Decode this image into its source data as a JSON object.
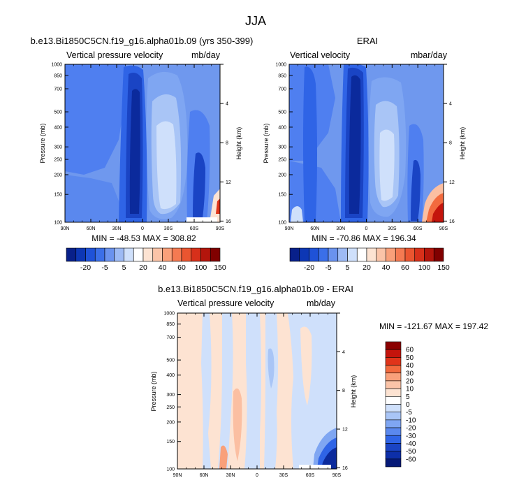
{
  "page_title": "JJA",
  "colors": {
    "dark_blue": "#0b2a9c",
    "blue": "#2f64e6",
    "light_blue": "#b8d0f8",
    "white": "#ffffff",
    "light_peach": "#fde3d2",
    "dark_red": "#8b0000"
  },
  "chart_data": [
    {
      "id": "model",
      "type": "heatmap",
      "title": "b.e13.Bi1850C5CN.f19_g16.alpha01b.09 (yrs 350-399)",
      "left_label": "Vertical pressure velocity",
      "right_label": "mb/day",
      "xlabel": "",
      "ylabel": "Pressure (mb)",
      "y2label": "Height (km)",
      "x_ticks": [
        "90N",
        "60N",
        "30N",
        "0",
        "30S",
        "60S",
        "90S"
      ],
      "y_ticks": [
        "100",
        "150",
        "200",
        "250",
        "300",
        "400",
        "500",
        "700",
        "850",
        "1000"
      ],
      "y2_ticks": [
        "16",
        "12",
        "8",
        "4"
      ],
      "ylim": [
        1000,
        100
      ],
      "stats": "MIN = -48.53  MAX = 308.82",
      "min": -48.53,
      "max": 308.82,
      "colorbar_labels": [
        "-20",
        "-5",
        "5",
        "20",
        "40",
        "60",
        "100",
        "150"
      ]
    },
    {
      "id": "obs",
      "type": "heatmap",
      "title": "ERAI",
      "left_label": "Vertical velocity",
      "right_label": "mbar/day",
      "xlabel": "",
      "ylabel": "Pressure (mb)",
      "y2label": "Height (km)",
      "x_ticks": [
        "90N",
        "60N",
        "30N",
        "0",
        "30S",
        "60S",
        "90S"
      ],
      "y_ticks": [
        "100",
        "150",
        "200",
        "250",
        "300",
        "400",
        "500",
        "700",
        "850",
        "1000"
      ],
      "y2_ticks": [
        "16",
        "12",
        "8",
        "4"
      ],
      "ylim": [
        1000,
        100
      ],
      "stats": "MIN = -70.86  MAX = 196.34",
      "min": -70.86,
      "max": 196.34,
      "colorbar_labels": [
        "-20",
        "-5",
        "5",
        "20",
        "40",
        "60",
        "100",
        "150"
      ]
    },
    {
      "id": "diff",
      "type": "heatmap",
      "title": "b.e13.Bi1850C5CN.f19_g16.alpha01b.09 - ERAI",
      "left_label": "Vertical pressure velocity",
      "right_label": "mb/day",
      "xlabel": "",
      "ylabel": "Pressure (mb)",
      "y2label": "Height (km)",
      "x_ticks": [
        "90N",
        "60N",
        "30N",
        "0",
        "30S",
        "60S",
        "90S"
      ],
      "y_ticks": [
        "100",
        "150",
        "200",
        "250",
        "300",
        "400",
        "500",
        "700",
        "850",
        "1000"
      ],
      "y2_ticks": [
        "16",
        "12",
        "8",
        "4"
      ],
      "ylim": [
        1000,
        100
      ],
      "stats": "MIN = -121.67  MAX = 197.42",
      "min": -121.67,
      "max": 197.42,
      "colorbar_labels": [
        "60",
        "50",
        "40",
        "30",
        "20",
        "10",
        "5",
        "0",
        "-5",
        "-10",
        "-20",
        "-30",
        "-40",
        "-50",
        "-60"
      ]
    }
  ]
}
